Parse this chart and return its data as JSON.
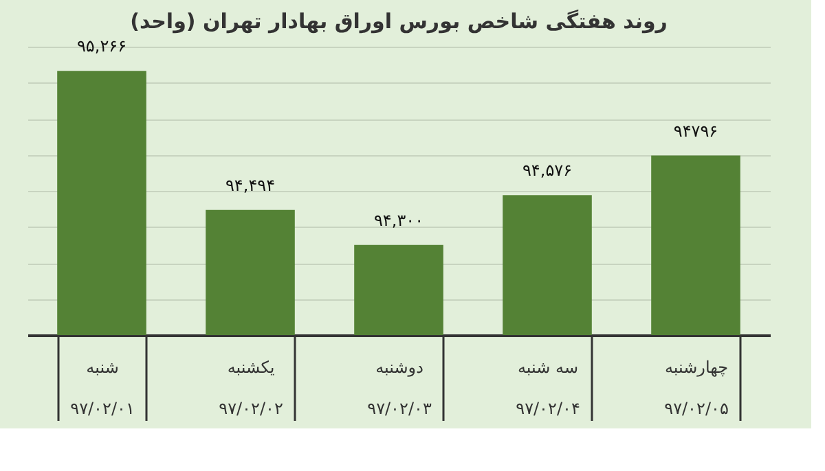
{
  "chart_data": {
    "type": "bar",
    "title": "روند هفتگی شاخص بورس اوراق بهادار تهران (واحد)",
    "categories": [
      "شنبه\n۹۷/۰۲/۰۱",
      "یکشنبه\n۹۷/۰۲/۰۲",
      "دوشنبه\n۹۷/۰۲/۰۳",
      "سه شنبه\n۹۷/۰۲/۰۴",
      "چهارشنبه\n۹۷/۰۲/۰۵"
    ],
    "values": [
      95266,
      94494,
      94300,
      94576,
      94796
    ],
    "value_labels": [
      "۹۵,۲۶۶",
      "۹۴,۴۹۴",
      "۹۴,۳۰۰",
      "۹۴,۵۷۶",
      "۹۴۷۹۶"
    ],
    "color": "#548235",
    "ylim": [
      93800,
      95400
    ],
    "tick_labels": "x",
    "grid": "y"
  }
}
